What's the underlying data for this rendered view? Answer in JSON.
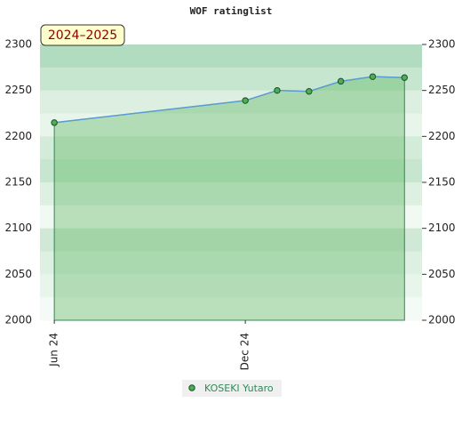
{
  "chart_data": {
    "type": "area",
    "title": "WOF ratinglist",
    "badge": "2024–2025",
    "x": [
      0,
      6,
      7,
      8,
      9,
      10,
      11
    ],
    "xlim": [
      -0.45,
      11.55
    ],
    "xticks": [
      {
        "value": 0,
        "label": "Jun 24"
      },
      {
        "value": 6,
        "label": "Dec 24"
      }
    ],
    "series": [
      {
        "name": "KOSEKI Yutaro",
        "color": "#4caf50",
        "line_color": "#5a9bd4",
        "values": [
          2215,
          2239,
          2250,
          2249,
          2260,
          2265,
          2264
        ]
      }
    ],
    "ylim": [
      2000,
      2300
    ],
    "yticks": [
      2000,
      2050,
      2100,
      2150,
      2200,
      2250,
      2300
    ],
    "y2lim": [
      2000,
      2300
    ],
    "y2ticks": [
      2000,
      2050,
      2100,
      2150,
      2200,
      2250,
      2300
    ]
  }
}
